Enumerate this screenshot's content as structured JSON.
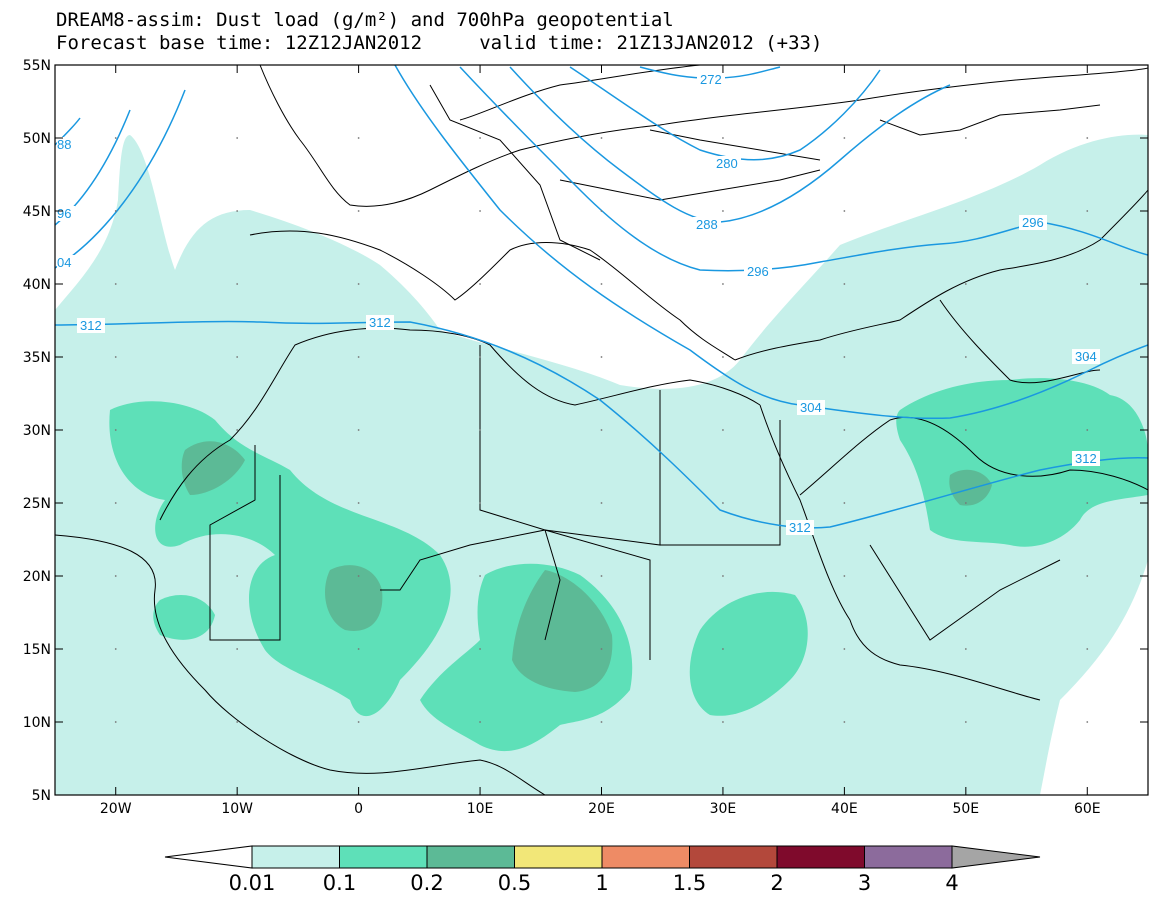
{
  "title": {
    "line1": "DREAM8-assim: Dust load (g/m²) and 700hPa geopotential",
    "line2": "Forecast base time: 12Z12JAN2012     valid time: 21Z13JAN2012 (+33)"
  },
  "map": {
    "extent": {
      "lon": [
        -25,
        65
      ],
      "lat": [
        5,
        55
      ]
    },
    "lat_labels": [
      "55N",
      "50N",
      "45N",
      "40N",
      "35N",
      "30N",
      "25N",
      "20N",
      "15N",
      "10N",
      "5N"
    ],
    "lon_labels": [
      "20W",
      "10W",
      "0",
      "10E",
      "20E",
      "30E",
      "40E",
      "50E",
      "60E"
    ],
    "fill_colors": [
      "#c6f0ea",
      "#5ee0b8",
      "#5cba96",
      "#f2e778",
      "#ee8b65",
      "#b3483b",
      "#7f0a2c",
      "#8c6b9c"
    ],
    "contour_color": "#1a98e0",
    "contour_labels": [
      "272",
      "280",
      "288",
      "296",
      "296",
      "304",
      "312",
      "304",
      "312",
      "312",
      "88",
      "96",
      "04"
    ]
  },
  "colorbar": {
    "labels": [
      "0.01",
      "0.1",
      "0.2",
      "0.5",
      "1",
      "1.5",
      "2",
      "3",
      "4"
    ],
    "colors": [
      "#c6f0ea",
      "#5ee0b8",
      "#5cba96",
      "#f2e778",
      "#ee8b65",
      "#b3483b",
      "#7f0a2c",
      "#8c6b9c"
    ],
    "under_color": "#ffffff",
    "over_color": "#a5a5a5"
  }
}
